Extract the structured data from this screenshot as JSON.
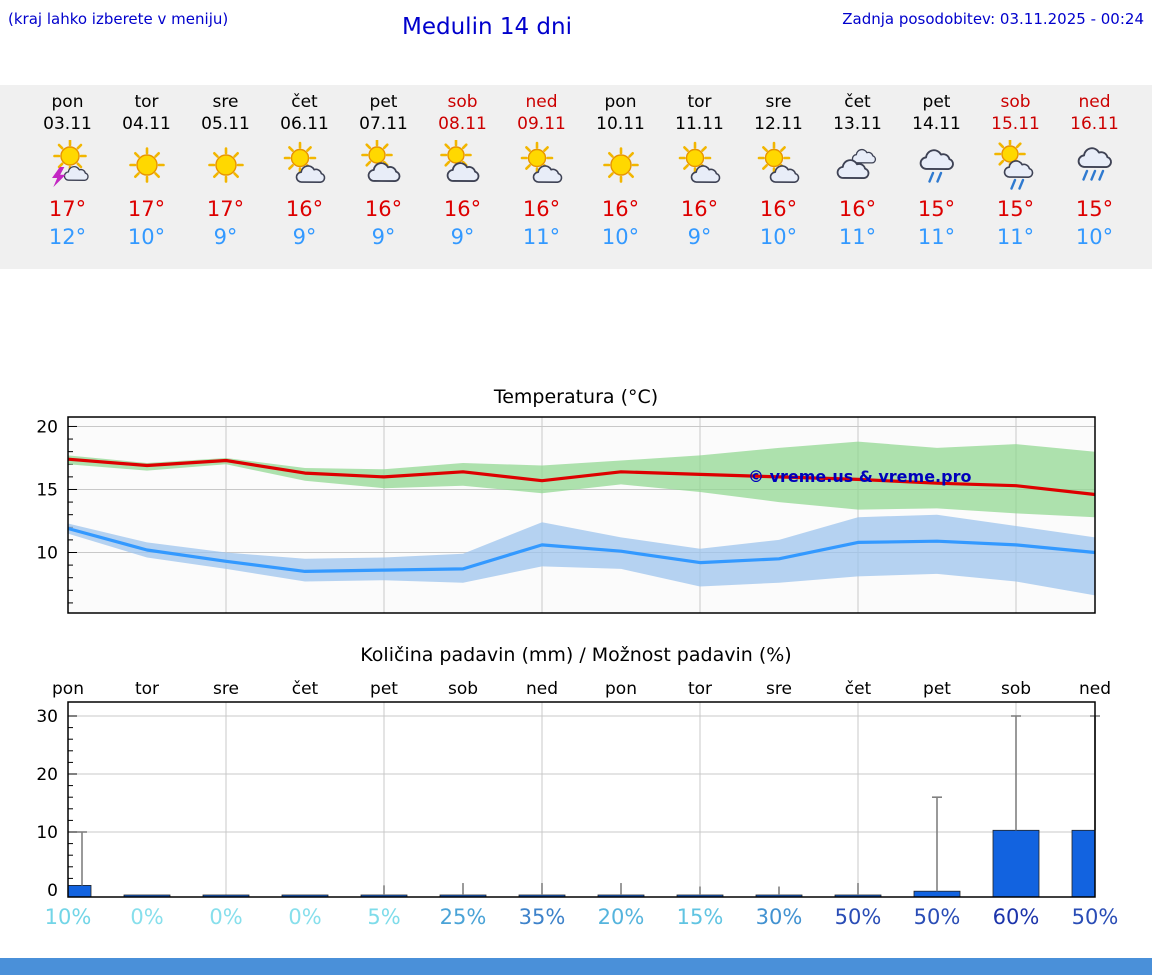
{
  "header": {
    "menu_hint": "(kraj lahko izberete v meniju)",
    "title": "Medulin 14 dni",
    "last_update": "Zadnja posodobitev: 03.11.2025 - 00:24"
  },
  "colors": {
    "link_blue": "#0000cc",
    "temp_max_red": "#dd0000",
    "temp_min_blue": "#3399ff",
    "weekend_red": "#cc0000",
    "strip_bg": "#f0f0f0",
    "grid": "#c8c8c8",
    "band_green": "#93d893",
    "band_blue": "#9ec4ee",
    "bar_fill": "#1263e0",
    "whisker": "#808080",
    "watermark_blue": "#0000bb",
    "footer_bar": "#4a90d9"
  },
  "forecast": {
    "days": [
      {
        "name": "pon",
        "date": "03.11",
        "weekend": false,
        "icon": "thunderstorm",
        "tmax": "17°",
        "tmin": "12°"
      },
      {
        "name": "tor",
        "date": "04.11",
        "weekend": false,
        "icon": "sunny",
        "tmax": "17°",
        "tmin": "10°"
      },
      {
        "name": "sre",
        "date": "05.11",
        "weekend": false,
        "icon": "sunny",
        "tmax": "17°",
        "tmin": "9°"
      },
      {
        "name": "čet",
        "date": "06.11",
        "weekend": false,
        "icon": "partly-cloudy",
        "tmax": "16°",
        "tmin": "9°"
      },
      {
        "name": "pet",
        "date": "07.11",
        "weekend": false,
        "icon": "cloud-sun",
        "tmax": "16°",
        "tmin": "9°"
      },
      {
        "name": "sob",
        "date": "08.11",
        "weekend": true,
        "icon": "cloud-sun",
        "tmax": "16°",
        "tmin": "9°"
      },
      {
        "name": "ned",
        "date": "09.11",
        "weekend": true,
        "icon": "partly-cloudy",
        "tmax": "16°",
        "tmin": "11°"
      },
      {
        "name": "pon",
        "date": "10.11",
        "weekend": false,
        "icon": "sunny",
        "tmax": "16°",
        "tmin": "10°"
      },
      {
        "name": "tor",
        "date": "11.11",
        "weekend": false,
        "icon": "partly-cloudy",
        "tmax": "16°",
        "tmin": "9°"
      },
      {
        "name": "sre",
        "date": "12.11",
        "weekend": false,
        "icon": "partly-cloudy",
        "tmax": "16°",
        "tmin": "10°"
      },
      {
        "name": "čet",
        "date": "13.11",
        "weekend": false,
        "icon": "cloudy",
        "tmax": "16°",
        "tmin": "11°"
      },
      {
        "name": "pet",
        "date": "14.11",
        "weekend": false,
        "icon": "rain",
        "tmax": "15°",
        "tmin": "11°"
      },
      {
        "name": "sob",
        "date": "15.11",
        "weekend": true,
        "icon": "sun-rain",
        "tmax": "15°",
        "tmin": "11°"
      },
      {
        "name": "ned",
        "date": "16.11",
        "weekend": true,
        "icon": "heavy-rain",
        "tmax": "15°",
        "tmin": "10°"
      }
    ]
  },
  "chart_data": [
    {
      "type": "line",
      "title": "Temperatura (°C)",
      "x": [
        "03.11",
        "04.11",
        "05.11",
        "06.11",
        "07.11",
        "08.11",
        "09.11",
        "10.11",
        "11.11",
        "12.11",
        "13.11",
        "14.11",
        "15.11",
        "16.11"
      ],
      "series": [
        {
          "name": "tmax",
          "color": "#dd0000",
          "values": [
            17.4,
            16.9,
            17.3,
            16.3,
            16.0,
            16.4,
            15.7,
            16.4,
            16.2,
            16.0,
            15.8,
            15.5,
            15.3,
            14.6
          ]
        },
        {
          "name": "tmin",
          "color": "#3399ff",
          "values": [
            11.9,
            10.2,
            9.3,
            8.5,
            8.6,
            8.7,
            10.6,
            10.1,
            9.2,
            9.5,
            10.8,
            10.9,
            10.6,
            10.0
          ]
        },
        {
          "name": "tmax_band_upper",
          "values": [
            17.7,
            17.1,
            17.5,
            16.7,
            16.6,
            17.1,
            16.9,
            17.3,
            17.7,
            18.3,
            18.8,
            18.3,
            18.6,
            18.0
          ]
        },
        {
          "name": "tmax_band_lower",
          "values": [
            17.0,
            16.5,
            17.0,
            15.7,
            15.1,
            15.3,
            14.7,
            15.4,
            14.8,
            14.0,
            13.4,
            13.5,
            13.1,
            12.8
          ]
        },
        {
          "name": "tmin_band_upper",
          "values": [
            12.3,
            10.8,
            10.0,
            9.5,
            9.6,
            9.9,
            12.4,
            11.2,
            10.3,
            11.0,
            12.8,
            13.0,
            12.1,
            11.2
          ]
        },
        {
          "name": "tmin_band_lower",
          "values": [
            11.5,
            9.6,
            8.7,
            7.7,
            7.8,
            7.6,
            8.9,
            8.7,
            7.3,
            7.6,
            8.1,
            8.3,
            7.7,
            6.6
          ]
        }
      ],
      "ylim": [
        5.2,
        20.75
      ],
      "yticks": [
        10,
        15,
        20
      ],
      "grid": true,
      "legend": "none",
      "watermark": "© vreme.us & vreme.pro"
    },
    {
      "type": "bar",
      "title": "Količina padavin (mm) / Možnost padavin (%)",
      "categories": [
        "pon",
        "tor",
        "sre",
        "čet",
        "pet",
        "sob",
        "ned",
        "pon",
        "tor",
        "sre",
        "čet",
        "pet",
        "sob",
        "ned"
      ],
      "values": [
        2.0,
        0,
        0,
        0,
        0.2,
        0.3,
        0.3,
        0.3,
        0.2,
        0.2,
        0.2,
        1.0,
        11.5,
        11.5
      ],
      "whisker_max": [
        10,
        0,
        0,
        0,
        0.8,
        1.2,
        1.2,
        1.2,
        0.6,
        0.6,
        1.2,
        16,
        30,
        30
      ],
      "probability_pct": [
        "10%",
        "0%",
        "0%",
        "0%",
        "5%",
        "25%",
        "35%",
        "20%",
        "15%",
        "30%",
        "50%",
        "50%",
        "60%",
        "50%"
      ],
      "probability_colors": [
        "#72d5e7",
        "#87dfec",
        "#87dfec",
        "#87dfec",
        "#7edcea",
        "#4aa3d7",
        "#3d82ca",
        "#55b4dd",
        "#60c4e2",
        "#4292d1",
        "#2a4db6",
        "#2a4db6",
        "#1c34ab",
        "#2a4db6"
      ],
      "ylim": [
        0,
        32
      ],
      "yticks": [
        0,
        10,
        20,
        30
      ],
      "grid": true,
      "legend": "none"
    }
  ]
}
